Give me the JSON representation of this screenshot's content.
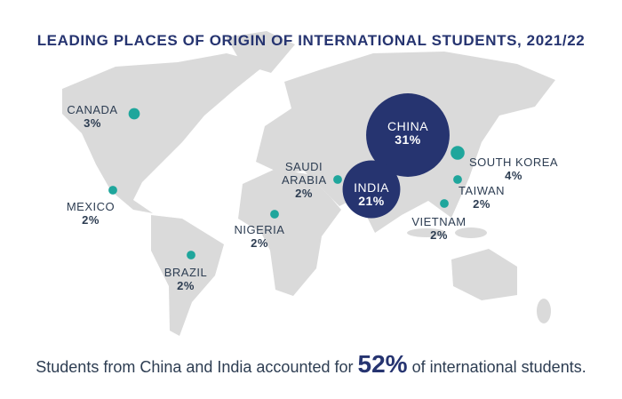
{
  "chart_data": {
    "type": "bubble-map",
    "title": "LEADING PLACES OF ORIGIN OF INTERNATIONAL STUDENTS, 2021/22",
    "categories": [
      "CHINA",
      "INDIA",
      "SOUTH KOREA",
      "CANADA",
      "MEXICO",
      "NIGERIA",
      "SAUDI ARABIA",
      "BRAZIL",
      "TAIWAN",
      "VIETNAM"
    ],
    "values": [
      31,
      21,
      4,
      3,
      2,
      2,
      2,
      2,
      2,
      2
    ],
    "value_labels": [
      "31%",
      "21%",
      "4%",
      "3%",
      "2%",
      "2%",
      "2%",
      "2%",
      "2%",
      "2%"
    ],
    "colors": [
      "#263470",
      "#263470",
      "#1fa69c",
      "#1fa69c",
      "#1fa69c",
      "#1fa69c",
      "#1fa69c",
      "#1fa69c",
      "#1fa69c",
      "#1fa69c"
    ]
  },
  "footer": {
    "before": "Students from China and India accounted for",
    "highlight": "52%",
    "after": "of international students."
  }
}
